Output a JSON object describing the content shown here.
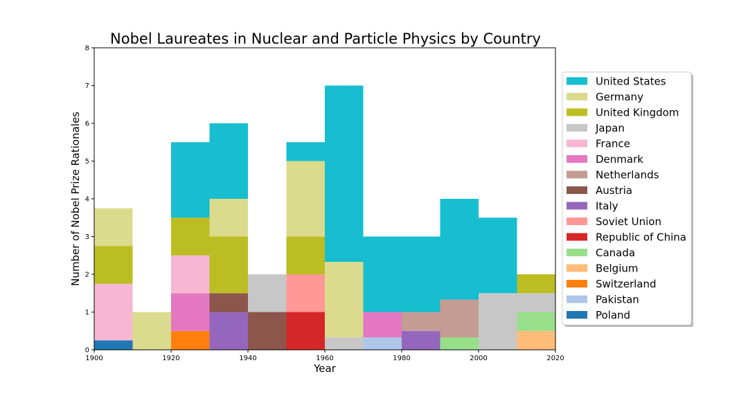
{
  "chart_data": {
    "type": "bar",
    "stacked": true,
    "title": "Nobel Laureates in Nuclear and Particle Physics by Country",
    "xlabel": "Year",
    "ylabel": "Number of Nobel Prize Rationales",
    "xlim": [
      1900,
      2020
    ],
    "ylim": [
      0,
      8
    ],
    "x_ticks": [
      "1900",
      "1920",
      "1940",
      "1960",
      "1980",
      "2000",
      "2020"
    ],
    "y_ticks": [
      "0",
      "1",
      "2",
      "3",
      "4",
      "5",
      "6",
      "7",
      "8"
    ],
    "grid": false,
    "legend_position": "right",
    "bins": [
      {
        "start": 1900,
        "end": 1910
      },
      {
        "start": 1910,
        "end": 1920
      },
      {
        "start": 1920,
        "end": 1930
      },
      {
        "start": 1930,
        "end": 1940
      },
      {
        "start": 1940,
        "end": 1950
      },
      {
        "start": 1950,
        "end": 1960
      },
      {
        "start": 1960,
        "end": 1970
      },
      {
        "start": 1970,
        "end": 1980
      },
      {
        "start": 1980,
        "end": 1990
      },
      {
        "start": 1990,
        "end": 2000
      },
      {
        "start": 2000,
        "end": 2010
      },
      {
        "start": 2010,
        "end": 2020
      }
    ],
    "series": [
      {
        "name": "Poland",
        "color": "#1f77b4",
        "values": [
          0.25,
          0,
          0,
          0,
          0,
          0,
          0,
          0,
          0,
          0,
          0,
          0
        ]
      },
      {
        "name": "Pakistan",
        "color": "#aec7e8",
        "values": [
          0,
          0,
          0,
          0,
          0,
          0,
          0,
          0.33,
          0,
          0,
          0,
          0
        ]
      },
      {
        "name": "Switzerland",
        "color": "#ff7f0e",
        "values": [
          0,
          0,
          0.5,
          0,
          0,
          0,
          0,
          0,
          0,
          0,
          0,
          0
        ]
      },
      {
        "name": "Belgium",
        "color": "#ffbb78",
        "values": [
          0,
          0,
          0,
          0,
          0,
          0,
          0,
          0,
          0,
          0,
          0,
          0.5
        ]
      },
      {
        "name": "Canada",
        "color": "#98df8a",
        "values": [
          0,
          0,
          0,
          0,
          0,
          0,
          0,
          0,
          0,
          0.33,
          0,
          0.5
        ]
      },
      {
        "name": "Republic of China",
        "color": "#d62728",
        "values": [
          0,
          0,
          0,
          0,
          0,
          1,
          0,
          0,
          0,
          0,
          0,
          0
        ]
      },
      {
        "name": "Soviet Union",
        "color": "#ff9896",
        "values": [
          0,
          0,
          0,
          0,
          0,
          1,
          0,
          0,
          0,
          0,
          0,
          0
        ]
      },
      {
        "name": "Italy",
        "color": "#9467bd",
        "values": [
          0,
          0,
          0,
          1,
          0,
          0,
          0,
          0,
          0.5,
          0,
          0,
          0
        ]
      },
      {
        "name": "Austria",
        "color": "#8c564b",
        "values": [
          0,
          0,
          0,
          0.5,
          1,
          0,
          0,
          0,
          0,
          0,
          0,
          0
        ]
      },
      {
        "name": "Netherlands",
        "color": "#c49c94",
        "values": [
          0,
          0,
          0,
          0,
          0,
          0,
          0,
          0,
          0.5,
          1,
          0,
          0
        ]
      },
      {
        "name": "Denmark",
        "color": "#e377c2",
        "values": [
          0,
          0,
          1,
          0,
          0,
          0,
          0,
          0.67,
          0,
          0,
          0,
          0
        ]
      },
      {
        "name": "France",
        "color": "#f7b6d2",
        "values": [
          1.5,
          0,
          1,
          0,
          0,
          0,
          0,
          0,
          0,
          0,
          0,
          0
        ]
      },
      {
        "name": "Japan",
        "color": "#c7c7c7",
        "values": [
          0,
          0,
          0,
          0,
          1,
          0,
          0.33,
          0,
          0,
          0,
          1.5,
          0.5
        ]
      },
      {
        "name": "United Kingdom",
        "color": "#bcbd22",
        "values": [
          1,
          0,
          1,
          1.5,
          0,
          1,
          0,
          0,
          0,
          0,
          0,
          0.5
        ]
      },
      {
        "name": "Germany",
        "color": "#dbdb8d",
        "values": [
          1,
          1,
          0,
          1,
          0,
          2,
          2,
          0,
          0,
          0,
          0,
          0
        ]
      },
      {
        "name": "United States",
        "color": "#17becf",
        "values": [
          0,
          0,
          2,
          2,
          0,
          0.5,
          4.67,
          2,
          2,
          2.67,
          2,
          0
        ]
      }
    ],
    "legend_order": [
      "United States",
      "Germany",
      "United Kingdom",
      "Japan",
      "France",
      "Denmark",
      "Netherlands",
      "Austria",
      "Italy",
      "Soviet Union",
      "Republic of China",
      "Canada",
      "Belgium",
      "Switzerland",
      "Pakistan",
      "Poland"
    ]
  }
}
